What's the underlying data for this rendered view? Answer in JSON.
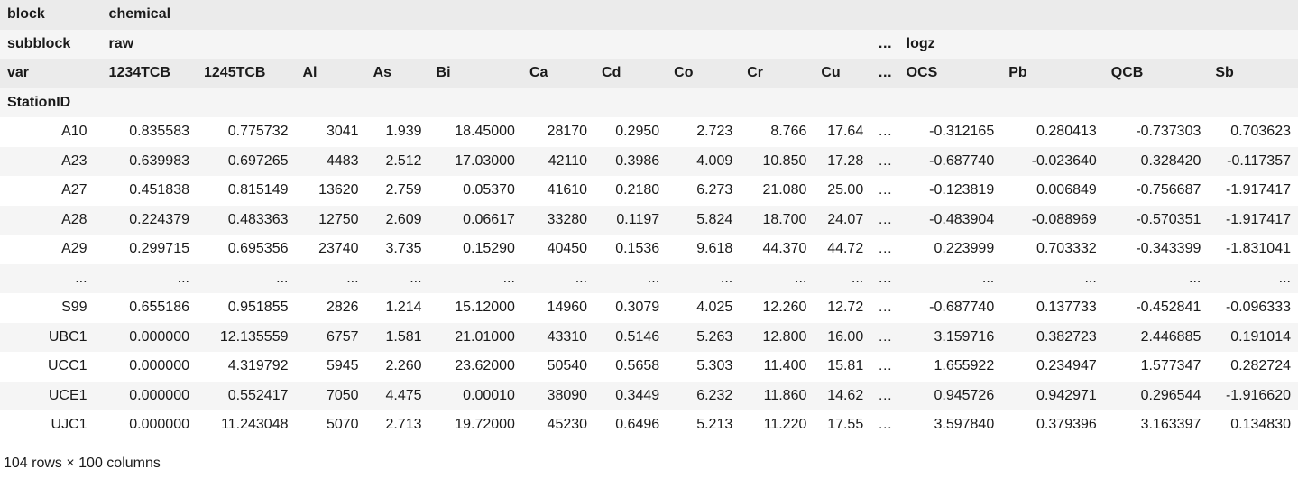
{
  "header": {
    "block": {
      "label": "block",
      "value": "chemical"
    },
    "subblock": {
      "label": "subblock",
      "value": "raw",
      "ellipsis": "…",
      "value2": "logz"
    },
    "var": {
      "label": "var",
      "columns": [
        "1234TCB",
        "1245TCB",
        "Al",
        "As",
        "Bi",
        "Ca",
        "Cd",
        "Co",
        "Cr",
        "Cu",
        "…",
        "OCS",
        "Pb",
        "QCB",
        "Sb"
      ]
    },
    "index_name": "StationID"
  },
  "rows": [
    {
      "id": "A10",
      "cells": [
        "0.835583",
        "0.775732",
        "3041",
        "1.939",
        "18.45000",
        "28170",
        "0.2950",
        "2.723",
        "8.766",
        "17.64",
        "…",
        "-0.312165",
        "0.280413",
        "-0.737303",
        "0.703623"
      ]
    },
    {
      "id": "A23",
      "cells": [
        "0.639983",
        "0.697265",
        "4483",
        "2.512",
        "17.03000",
        "42110",
        "0.3986",
        "4.009",
        "10.850",
        "17.28",
        "…",
        "-0.687740",
        "-0.023640",
        "0.328420",
        "-0.117357"
      ]
    },
    {
      "id": "A27",
      "cells": [
        "0.451838",
        "0.815149",
        "13620",
        "2.759",
        "0.05370",
        "41610",
        "0.2180",
        "6.273",
        "21.080",
        "25.00",
        "…",
        "-0.123819",
        "0.006849",
        "-0.756687",
        "-1.917417"
      ]
    },
    {
      "id": "A28",
      "cells": [
        "0.224379",
        "0.483363",
        "12750",
        "2.609",
        "0.06617",
        "33280",
        "0.1197",
        "5.824",
        "18.700",
        "24.07",
        "…",
        "-0.483904",
        "-0.088969",
        "-0.570351",
        "-1.917417"
      ]
    },
    {
      "id": "A29",
      "cells": [
        "0.299715",
        "0.695356",
        "23740",
        "3.735",
        "0.15290",
        "40450",
        "0.1536",
        "9.618",
        "44.370",
        "44.72",
        "…",
        "0.223999",
        "0.703332",
        "-0.343399",
        "-1.831041"
      ]
    },
    {
      "id": "...",
      "cells": [
        "...",
        "...",
        "...",
        "...",
        "...",
        "...",
        "...",
        "...",
        "...",
        "...",
        "…",
        "...",
        "...",
        "...",
        "..."
      ]
    },
    {
      "id": "S99",
      "cells": [
        "0.655186",
        "0.951855",
        "2826",
        "1.214",
        "15.12000",
        "14960",
        "0.3079",
        "4.025",
        "12.260",
        "12.72",
        "…",
        "-0.687740",
        "0.137733",
        "-0.452841",
        "-0.096333"
      ]
    },
    {
      "id": "UBC1",
      "cells": [
        "0.000000",
        "12.135559",
        "6757",
        "1.581",
        "21.01000",
        "43310",
        "0.5146",
        "5.263",
        "12.800",
        "16.00",
        "…",
        "3.159716",
        "0.382723",
        "2.446885",
        "0.191014"
      ]
    },
    {
      "id": "UCC1",
      "cells": [
        "0.000000",
        "4.319792",
        "5945",
        "2.260",
        "23.62000",
        "50540",
        "0.5658",
        "5.303",
        "11.400",
        "15.81",
        "…",
        "1.655922",
        "0.234947",
        "1.577347",
        "0.282724"
      ]
    },
    {
      "id": "UCE1",
      "cells": [
        "0.000000",
        "0.552417",
        "7050",
        "4.475",
        "0.00010",
        "38090",
        "0.3449",
        "6.232",
        "11.860",
        "14.62",
        "…",
        "0.945726",
        "0.942971",
        "0.296544",
        "-1.916620"
      ]
    },
    {
      "id": "UJC1",
      "cells": [
        "0.000000",
        "11.243048",
        "5070",
        "2.713",
        "19.72000",
        "45230",
        "0.6496",
        "5.213",
        "11.220",
        "17.55",
        "…",
        "3.597840",
        "0.379396",
        "3.163397",
        "0.134830"
      ]
    }
  ],
  "footer": {
    "shape": "104 rows × 100 columns"
  }
}
